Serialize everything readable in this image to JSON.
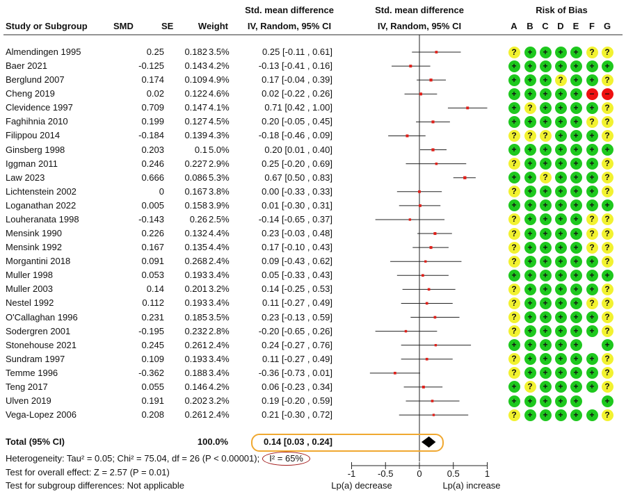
{
  "header": {
    "study": "Study or Subgroup",
    "smd": "SMD",
    "se": "SE",
    "weight": "Weight",
    "ci_title1": "Std. mean difference",
    "ci_title2": "IV, Random, 95% CI",
    "plot_title1": "Std. mean difference",
    "plot_title2": "IV, Random, 95% CI",
    "rob_title": "Risk of Bias",
    "rob_domains": [
      "A",
      "B",
      "C",
      "D",
      "E",
      "F",
      "G"
    ]
  },
  "rob_legend": {
    "+": "#1ec81e",
    "?": "#f2f230",
    "-": "#ee1111"
  },
  "chart_data": {
    "type": "forest",
    "xlim": [
      -1,
      1
    ],
    "xticks": [
      "-1",
      "-0.5",
      "0",
      "0.5",
      "1"
    ],
    "xlabel_left": "Lp(a) decrease",
    "xlabel_right": "Lp(a) increase",
    "studies": [
      {
        "name": "Almendingen 1995",
        "smd": "0.25",
        "se": "0.182",
        "weight": "3.5%",
        "ci": "0.25 [-0.11 , 0.61]",
        "est": 0.25,
        "lo": -0.11,
        "hi": 0.61,
        "w": 3.5,
        "rob": [
          "?",
          "+",
          "+",
          "+",
          "+",
          "?",
          "?"
        ]
      },
      {
        "name": "Baer 2021",
        "smd": "-0.125",
        "se": "0.143",
        "weight": "4.2%",
        "ci": "-0.13 [-0.41 , 0.16]",
        "est": -0.13,
        "lo": -0.41,
        "hi": 0.16,
        "w": 4.2,
        "rob": [
          "+",
          "+",
          "+",
          "+",
          "+",
          "+",
          "+"
        ]
      },
      {
        "name": "Berglund 2007",
        "smd": "0.174",
        "se": "0.109",
        "weight": "4.9%",
        "ci": "0.17 [-0.04 , 0.39]",
        "est": 0.17,
        "lo": -0.04,
        "hi": 0.39,
        "w": 4.9,
        "rob": [
          "+",
          "+",
          "+",
          "?",
          "+",
          "+",
          "?"
        ]
      },
      {
        "name": "Cheng 2019",
        "smd": "0.02",
        "se": "0.122",
        "weight": "4.6%",
        "ci": "0.02 [-0.22 , 0.26]",
        "est": 0.02,
        "lo": -0.22,
        "hi": 0.26,
        "w": 4.6,
        "rob": [
          "+",
          "+",
          "+",
          "+",
          "+",
          "-",
          "-"
        ]
      },
      {
        "name": "Clevidence 1997",
        "smd": "0.709",
        "se": "0.147",
        "weight": "4.1%",
        "ci": "0.71 [0.42 , 1.00]",
        "est": 0.71,
        "lo": 0.42,
        "hi": 1.0,
        "w": 4.1,
        "rob": [
          "+",
          "?",
          "+",
          "+",
          "+",
          "+",
          "?"
        ]
      },
      {
        "name": "Faghihnia 2010",
        "smd": "0.199",
        "se": "0.127",
        "weight": "4.5%",
        "ci": "0.20 [-0.05 , 0.45]",
        "est": 0.2,
        "lo": -0.05,
        "hi": 0.45,
        "w": 4.5,
        "rob": [
          "+",
          "+",
          "+",
          "+",
          "+",
          "?",
          "?"
        ]
      },
      {
        "name": "Filippou 2014",
        "smd": "-0.184",
        "se": "0.139",
        "weight": "4.3%",
        "ci": "-0.18 [-0.46 , 0.09]",
        "est": -0.18,
        "lo": -0.46,
        "hi": 0.09,
        "w": 4.3,
        "rob": [
          "?",
          "?",
          "?",
          "+",
          "+",
          "+",
          "?"
        ]
      },
      {
        "name": "Ginsberg 1998",
        "smd": "0.203",
        "se": "0.1",
        "weight": "5.0%",
        "ci": "0.20 [0.01 , 0.40]",
        "est": 0.2,
        "lo": 0.01,
        "hi": 0.4,
        "w": 5.0,
        "rob": [
          "+",
          "+",
          "+",
          "+",
          "+",
          "+",
          "+"
        ]
      },
      {
        "name": "Iggman 2011",
        "smd": "0.246",
        "se": "0.227",
        "weight": "2.9%",
        "ci": "0.25 [-0.20 , 0.69]",
        "est": 0.25,
        "lo": -0.2,
        "hi": 0.69,
        "w": 2.9,
        "rob": [
          "?",
          "+",
          "+",
          "+",
          "+",
          "+",
          "?"
        ]
      },
      {
        "name": "Law 2023",
        "smd": "0.666",
        "se": "0.086",
        "weight": "5.3%",
        "ci": "0.67 [0.50 , 0.83]",
        "est": 0.67,
        "lo": 0.5,
        "hi": 0.83,
        "w": 5.3,
        "rob": [
          "+",
          "+",
          "?",
          "+",
          "+",
          "+",
          "?"
        ]
      },
      {
        "name": "Lichtenstein 2002",
        "smd": "0",
        "se": "0.167",
        "weight": "3.8%",
        "ci": "0.00 [-0.33 , 0.33]",
        "est": 0.0,
        "lo": -0.33,
        "hi": 0.33,
        "w": 3.8,
        "rob": [
          "?",
          "+",
          "+",
          "+",
          "+",
          "+",
          "?"
        ]
      },
      {
        "name": "Loganathan 2022",
        "smd": "0.005",
        "se": "0.158",
        "weight": "3.9%",
        "ci": "0.01 [-0.30 , 0.31]",
        "est": 0.01,
        "lo": -0.3,
        "hi": 0.31,
        "w": 3.9,
        "rob": [
          "+",
          "+",
          "+",
          "+",
          "+",
          "+",
          "+"
        ]
      },
      {
        "name": "Louheranata 1998",
        "smd": "-0.143",
        "se": "0.26",
        "weight": "2.5%",
        "ci": "-0.14 [-0.65 , 0.37]",
        "est": -0.14,
        "lo": -0.65,
        "hi": 0.37,
        "w": 2.5,
        "rob": [
          "?",
          "+",
          "+",
          "+",
          "+",
          "?",
          "?"
        ]
      },
      {
        "name": "Mensink 1990",
        "smd": "0.226",
        "se": "0.132",
        "weight": "4.4%",
        "ci": "0.23 [-0.03 , 0.48]",
        "est": 0.23,
        "lo": -0.03,
        "hi": 0.48,
        "w": 4.4,
        "rob": [
          "?",
          "+",
          "+",
          "+",
          "+",
          "?",
          "?"
        ]
      },
      {
        "name": "Mensink 1992",
        "smd": "0.167",
        "se": "0.135",
        "weight": "4.4%",
        "ci": "0.17 [-0.10 , 0.43]",
        "est": 0.17,
        "lo": -0.1,
        "hi": 0.43,
        "w": 4.4,
        "rob": [
          "?",
          "+",
          "+",
          "+",
          "+",
          "?",
          "?"
        ]
      },
      {
        "name": "Morgantini 2018",
        "smd": "0.091",
        "se": "0.268",
        "weight": "2.4%",
        "ci": "0.09 [-0.43 , 0.62]",
        "est": 0.09,
        "lo": -0.43,
        "hi": 0.62,
        "w": 2.4,
        "rob": [
          "?",
          "+",
          "+",
          "+",
          "+",
          "+",
          "?"
        ]
      },
      {
        "name": "Muller 1998",
        "smd": "0.053",
        "se": "0.193",
        "weight": "3.4%",
        "ci": "0.05 [-0.33 , 0.43]",
        "est": 0.05,
        "lo": -0.33,
        "hi": 0.43,
        "w": 3.4,
        "rob": [
          "+",
          "+",
          "+",
          "+",
          "+",
          "+",
          "+"
        ]
      },
      {
        "name": "Muller 2003",
        "smd": "0.14",
        "se": "0.201",
        "weight": "3.2%",
        "ci": "0.14 [-0.25 , 0.53]",
        "est": 0.14,
        "lo": -0.25,
        "hi": 0.53,
        "w": 3.2,
        "rob": [
          "?",
          "+",
          "+",
          "+",
          "+",
          "+",
          "?"
        ]
      },
      {
        "name": "Nestel 1992",
        "smd": "0.112",
        "se": "0.193",
        "weight": "3.4%",
        "ci": "0.11 [-0.27 , 0.49]",
        "est": 0.11,
        "lo": -0.27,
        "hi": 0.49,
        "w": 3.4,
        "rob": [
          "?",
          "+",
          "+",
          "+",
          "+",
          "?",
          "?"
        ]
      },
      {
        "name": "O'Callaghan 1996",
        "smd": "0.231",
        "se": "0.185",
        "weight": "3.5%",
        "ci": "0.23 [-0.13 , 0.59]",
        "est": 0.23,
        "lo": -0.13,
        "hi": 0.59,
        "w": 3.5,
        "rob": [
          "?",
          "+",
          "+",
          "+",
          "+",
          "+",
          "?"
        ]
      },
      {
        "name": "Sodergren 2001",
        "smd": "-0.195",
        "se": "0.232",
        "weight": "2.8%",
        "ci": "-0.20 [-0.65 , 0.26]",
        "est": -0.2,
        "lo": -0.65,
        "hi": 0.26,
        "w": 2.8,
        "rob": [
          "?",
          "+",
          "+",
          "+",
          "+",
          "+",
          "?"
        ]
      },
      {
        "name": "Stonehouse 2021",
        "smd": "0.245",
        "se": "0.261",
        "weight": "2.4%",
        "ci": "0.24 [-0.27 , 0.76]",
        "est": 0.24,
        "lo": -0.27,
        "hi": 0.76,
        "w": 2.4,
        "rob": [
          "+",
          "+",
          "+",
          "+",
          "+",
          "",
          "+"
        ]
      },
      {
        "name": "Sundram 1997",
        "smd": "0.109",
        "se": "0.193",
        "weight": "3.4%",
        "ci": "0.11 [-0.27 , 0.49]",
        "est": 0.11,
        "lo": -0.27,
        "hi": 0.49,
        "w": 3.4,
        "rob": [
          "?",
          "+",
          "+",
          "+",
          "+",
          "+",
          "?"
        ]
      },
      {
        "name": "Temme 1996",
        "smd": "-0.362",
        "se": "0.188",
        "weight": "3.4%",
        "ci": "-0.36 [-0.73 , 0.01]",
        "est": -0.36,
        "lo": -0.73,
        "hi": 0.01,
        "w": 3.4,
        "rob": [
          "?",
          "+",
          "+",
          "+",
          "+",
          "+",
          "?"
        ]
      },
      {
        "name": "Teng 2017",
        "smd": "0.055",
        "se": "0.146",
        "weight": "4.2%",
        "ci": "0.06 [-0.23 , 0.34]",
        "est": 0.06,
        "lo": -0.23,
        "hi": 0.34,
        "w": 4.2,
        "rob": [
          "+",
          "?",
          "+",
          "+",
          "+",
          "+",
          "?"
        ]
      },
      {
        "name": "Ulven 2019",
        "smd": "0.191",
        "se": "0.202",
        "weight": "3.2%",
        "ci": "0.19 [-0.20 , 0.59]",
        "est": 0.19,
        "lo": -0.2,
        "hi": 0.59,
        "w": 3.2,
        "rob": [
          "+",
          "+",
          "+",
          "+",
          "+",
          "",
          "+"
        ]
      },
      {
        "name": "Vega-Lopez 2006",
        "smd": "0.208",
        "se": "0.261",
        "weight": "2.4%",
        "ci": "0.21 [-0.30 , 0.72]",
        "est": 0.21,
        "lo": -0.3,
        "hi": 0.72,
        "w": 2.4,
        "rob": [
          "?",
          "+",
          "+",
          "+",
          "+",
          "+",
          "?"
        ]
      }
    ],
    "total": {
      "label": "Total (95% CI)",
      "weight": "100.0%",
      "ci": "0.14 [0.03 , 0.24]",
      "est": 0.14,
      "lo": 0.03,
      "hi": 0.24
    }
  },
  "footer": {
    "heterogeneity": "Heterogeneity: Tau² = 0.05; Chi² = 75.04, df = 26 (P < 0.00001);",
    "i2": "I² = 65%",
    "overall": "Test for overall effect: Z = 2.57 (P = 0.01)",
    "subgroup": "Test for subgroup differences: Not applicable"
  },
  "highlight_colors": {
    "total_box": "#f0a830",
    "i2_ellipse": "#a01818"
  }
}
